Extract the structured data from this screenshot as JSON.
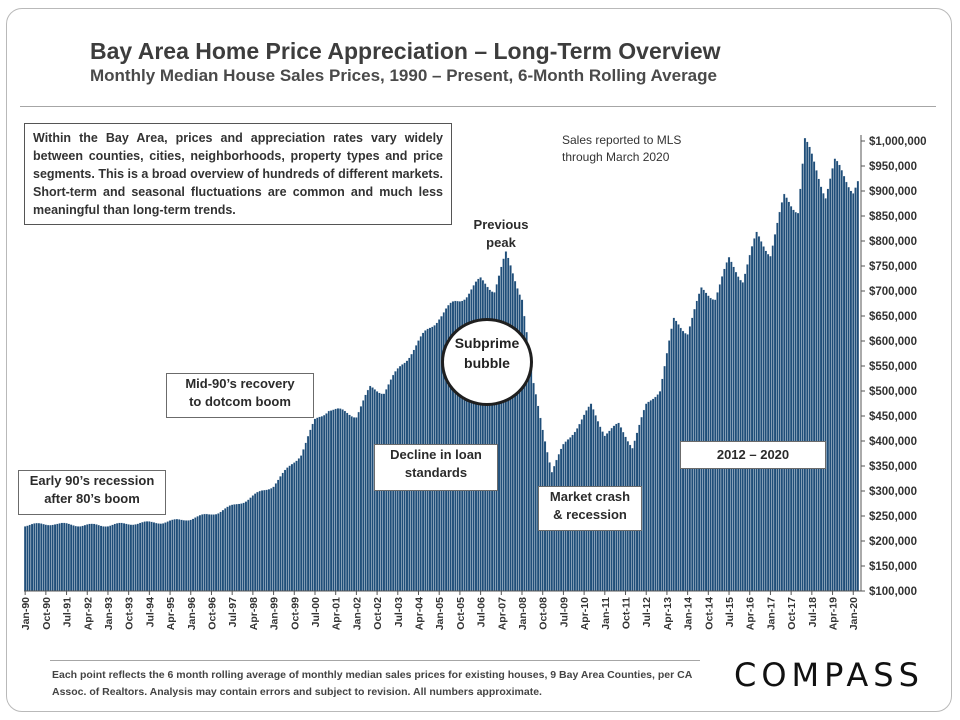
{
  "header": {
    "title": "Bay Area Home Price Appreciation – Long-Term Overview",
    "subtitle": "Monthly Median House Sales Prices, 1990 – Present, 6-Month Rolling Average"
  },
  "intro_text": "Within the Bay Area, prices and appreciation rates vary widely between counties, cities, neighborhoods, property types and price segments. This is a broad overview of hundreds of different markets. Short-term and seasonal fluctuations are common and much less meaningful than long-term trends.",
  "mls_note": [
    "Sales reported to MLS",
    "through March 2020"
  ],
  "annotations": {
    "early90s": [
      "Early 90’s recession",
      "after 80’s boom"
    ],
    "mid90s": [
      "Mid-90’s recovery",
      "to dotcom boom"
    ],
    "loans": [
      "Decline in loan",
      "standards"
    ],
    "previous_peak": [
      "Previous",
      "peak"
    ],
    "subprime": [
      "Subprime",
      "bubble"
    ],
    "crash": [
      "Market crash",
      "& recession"
    ],
    "recent": "2012 – 2020"
  },
  "footer": "Each point reflects the 6 month rolling average of monthly median sales prices for existing houses, 9 Bay Area Counties, per CA Assoc. of Realtors. Analysis may contain errors and subject to revision. All numbers approximate.",
  "logo": "COMPASS",
  "colors": {
    "bar": "#1f4e79",
    "bar_edge": "#ffffff"
  },
  "chart_data": {
    "type": "bar",
    "ylim": [
      100000,
      1000000
    ],
    "y_ticks": [
      {
        "value": 1000000,
        "label": "$1,000,000"
      },
      {
        "value": 950000,
        "label": "$950,000"
      },
      {
        "value": 900000,
        "label": "$900,000"
      },
      {
        "value": 850000,
        "label": "$850,000"
      },
      {
        "value": 800000,
        "label": "$800,000"
      },
      {
        "value": 750000,
        "label": "$750,000"
      },
      {
        "value": 700000,
        "label": "$700,000"
      },
      {
        "value": 650000,
        "label": "$650,000"
      },
      {
        "value": 600000,
        "label": "$600,000"
      },
      {
        "value": 550000,
        "label": "$550,000"
      },
      {
        "value": 500000,
        "label": "$500,000"
      },
      {
        "value": 450000,
        "label": "$450,000"
      },
      {
        "value": 400000,
        "label": "$400,000"
      },
      {
        "value": 350000,
        "label": "$350,000"
      },
      {
        "value": 300000,
        "label": "$300,000"
      },
      {
        "value": 250000,
        "label": "$250,000"
      },
      {
        "value": 200000,
        "label": "$200,000"
      },
      {
        "value": 150000,
        "label": "$150,000"
      },
      {
        "value": 100000,
        "label": "$100,000"
      }
    ],
    "x_tick_labels": [
      "Jan-90",
      "Oct-90",
      "Jul-91",
      "Apr-92",
      "Jan-93",
      "Oct-93",
      "Jul-94",
      "Apr-95",
      "Jan-96",
      "Oct-96",
      "Jul-97",
      "Apr-98",
      "Jan-99",
      "Oct-99",
      "Jul-00",
      "Apr-01",
      "Jan-02",
      "Oct-02",
      "Jul-03",
      "Apr-04",
      "Jan-05",
      "Oct-05",
      "Jul-06",
      "Apr-07",
      "Jan-08",
      "Oct-08",
      "Jul-09",
      "Apr-10",
      "Jan-11",
      "Oct-11",
      "Jul-12",
      "Apr-13",
      "Jan-14",
      "Oct-14",
      "Jul-15",
      "Apr-16",
      "Jan-17",
      "Oct-17",
      "Jul-18",
      "Apr-19",
      "Jan-20"
    ],
    "x_tick_every_months": 9,
    "start_month": "Jan-90",
    "end_month": "Mar-20",
    "anchors": [
      [
        "Jan-90",
        232000
      ],
      [
        "Jan-91",
        235000
      ],
      [
        "Jan-92",
        232000
      ],
      [
        "Jan-93",
        232000
      ],
      [
        "Jan-94",
        236000
      ],
      [
        "Jan-95",
        238000
      ],
      [
        "Jan-96",
        245000
      ],
      [
        "Jan-97",
        258000
      ],
      [
        "Jan-98",
        282000
      ],
      [
        "Jan-99",
        312000
      ],
      [
        "Jan-00",
        375000
      ],
      [
        "Jul-00",
        440000
      ],
      [
        "Jan-01",
        465000
      ],
      [
        "Jan-02",
        452000
      ],
      [
        "Jul-02",
        505000
      ],
      [
        "Jan-03",
        500000
      ],
      [
        "Jan-04",
        580000
      ],
      [
        "Jan-05",
        650000
      ],
      [
        "Jan-06",
        695000
      ],
      [
        "Jul-06",
        720000
      ],
      [
        "Jan-07",
        705000
      ],
      [
        "Jun-07",
        770000
      ],
      [
        "Jan-08",
        690000
      ],
      [
        "Jun-08",
        510000
      ],
      [
        "Feb-09",
        340000
      ],
      [
        "Jul-09",
        390000
      ],
      [
        "Jan-10",
        430000
      ],
      [
        "Jul-10",
        470000
      ],
      [
        "Jan-11",
        415000
      ],
      [
        "Jul-11",
        432000
      ],
      [
        "Jan-12",
        390000
      ],
      [
        "Jul-12",
        470000
      ],
      [
        "Jan-13",
        505000
      ],
      [
        "Jul-13",
        640000
      ],
      [
        "Jan-14",
        620000
      ],
      [
        "Jul-14",
        700000
      ],
      [
        "Jan-15",
        690000
      ],
      [
        "Jul-15",
        760000
      ],
      [
        "Jan-16",
        725000
      ],
      [
        "Jul-16",
        810000
      ],
      [
        "Jan-17",
        778000
      ],
      [
        "Jul-17",
        885000
      ],
      [
        "Jan-18",
        865000
      ],
      [
        "Apr-18",
        1000000
      ],
      [
        "Jan-19",
        895000
      ],
      [
        "May-19",
        955000
      ],
      [
        "Jan-20",
        905000
      ],
      [
        "Mar-20",
        920000
      ]
    ]
  }
}
